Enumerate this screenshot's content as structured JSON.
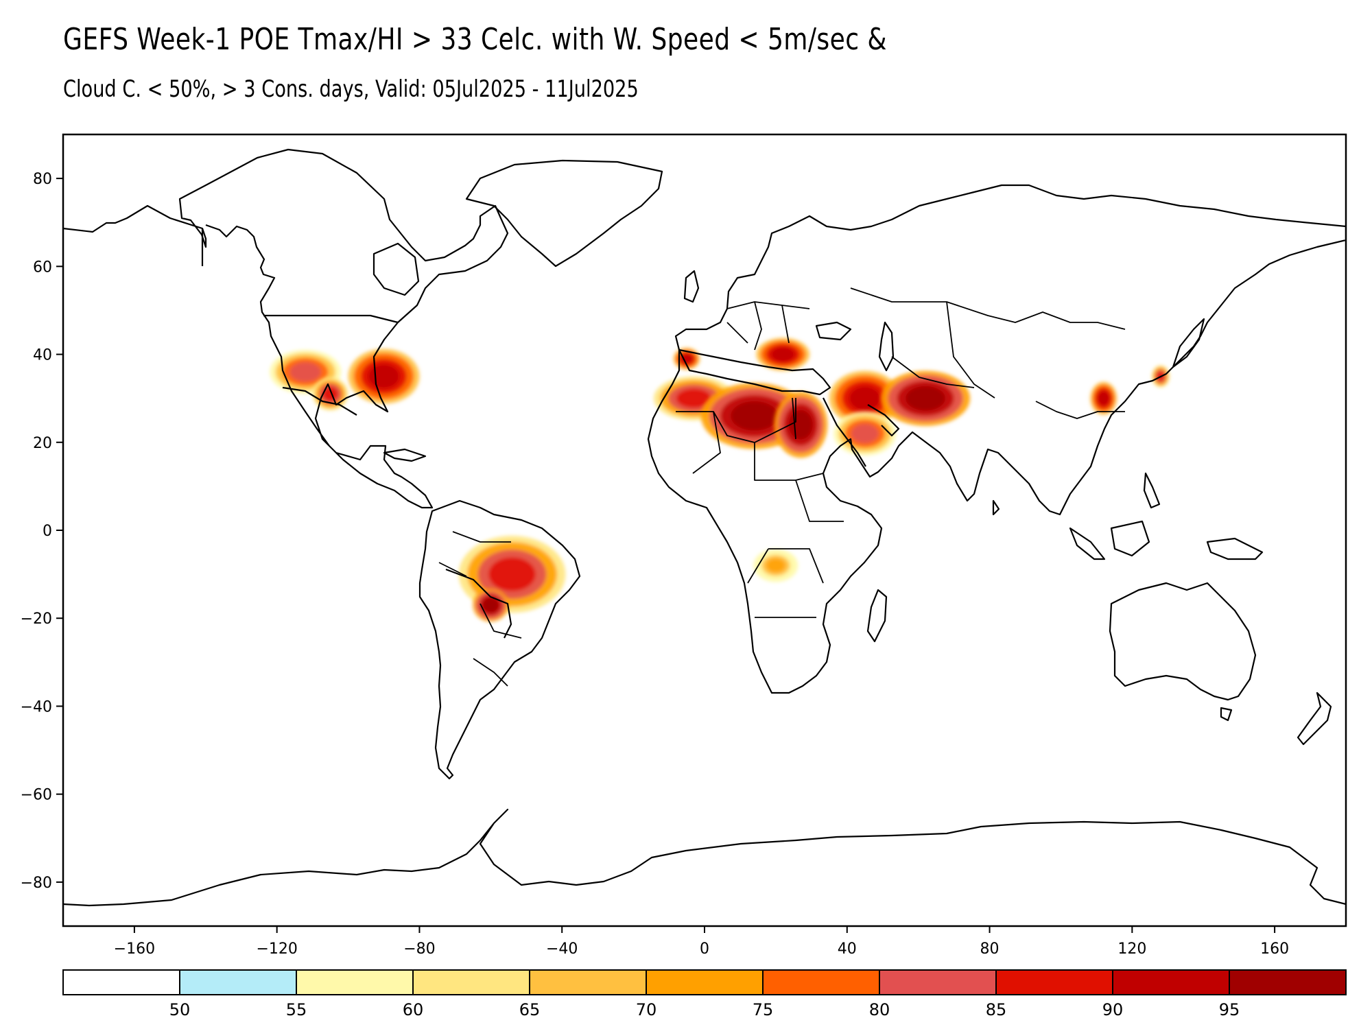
{
  "title": {
    "line1": "GEFS Week-1 POE Tmax/HI > 33 Celc. with W. Speed < 5m/sec &",
    "line2": "Cloud C. < 50%, > 3 Cons. days, Valid: 05Jul2025 - 11Jul2025"
  },
  "axes": {
    "y_ticks": [
      {
        "value": 80,
        "label": "80"
      },
      {
        "value": 60,
        "label": "60"
      },
      {
        "value": 40,
        "label": "40"
      },
      {
        "value": 20,
        "label": "20"
      },
      {
        "value": 0,
        "label": "0"
      },
      {
        "value": -20,
        "label": "−20"
      },
      {
        "value": -40,
        "label": "−40"
      },
      {
        "value": -60,
        "label": "−60"
      },
      {
        "value": -80,
        "label": "−80"
      }
    ],
    "x_ticks": [
      {
        "value": -160,
        "label": "−160"
      },
      {
        "value": -120,
        "label": "−120"
      },
      {
        "value": -80,
        "label": "−80"
      },
      {
        "value": -40,
        "label": "−40"
      },
      {
        "value": 0,
        "label": "0"
      },
      {
        "value": 40,
        "label": "40"
      },
      {
        "value": 80,
        "label": "80"
      },
      {
        "value": 120,
        "label": "120"
      },
      {
        "value": 160,
        "label": "160"
      }
    ],
    "lon_range": [
      -180,
      180
    ],
    "lat_range": [
      -90,
      90
    ]
  },
  "colorbar": {
    "colors": [
      "#ffffff",
      "#b4ecf8",
      "#fff9aa",
      "#ffe680",
      "#ffc040",
      "#ffa000",
      "#ff6000",
      "#e25050",
      "#e01000",
      "#c00000",
      "#a00000"
    ],
    "labels": [
      "50",
      "55",
      "60",
      "65",
      "70",
      "75",
      "80",
      "85",
      "90",
      "95"
    ]
  },
  "map_data": {
    "coastline_color": "#000000",
    "hotspots": [
      {
        "region": "Southwestern US",
        "lon": -112,
        "lat": 36,
        "r_lon": 8,
        "r_lat": 4,
        "level": 80
      },
      {
        "region": "South-central US",
        "lon": -90,
        "lat": 35,
        "r_lon": 8,
        "r_lat": 5,
        "level": 90
      },
      {
        "region": "Texas / Mexico border",
        "lon": -105,
        "lat": 31,
        "r_lon": 4,
        "r_lat": 3,
        "level": 85
      },
      {
        "region": "Central Brazil",
        "lon": -54,
        "lat": -10,
        "r_lon": 12,
        "r_lat": 7,
        "level": 85
      },
      {
        "region": "Bolivia / Paraguay",
        "lon": -60,
        "lat": -17,
        "r_lon": 4,
        "r_lat": 3,
        "level": 95
      },
      {
        "region": "Iberia",
        "lon": -5,
        "lat": 39,
        "r_lon": 3,
        "r_lat": 2,
        "level": 90
      },
      {
        "region": "Northwest Africa",
        "lon": -3,
        "lat": 30,
        "r_lon": 9,
        "r_lat": 4,
        "level": 85
      },
      {
        "region": "Central Sahara",
        "lon": 14,
        "lat": 26,
        "r_lon": 12,
        "r_lat": 6,
        "level": 95
      },
      {
        "region": "Egypt / Sudan",
        "lon": 27,
        "lat": 24,
        "r_lon": 6,
        "r_lat": 6,
        "level": 95
      },
      {
        "region": "Balkans / Greece",
        "lon": 22,
        "lat": 40,
        "r_lon": 6,
        "r_lat": 3,
        "level": 90
      },
      {
        "region": "Middle East",
        "lon": 45,
        "lat": 30,
        "r_lon": 8,
        "r_lat": 5,
        "level": 90
      },
      {
        "region": "Arabian Peninsula",
        "lon": 45,
        "lat": 22,
        "r_lon": 7,
        "r_lat": 4,
        "level": 80
      },
      {
        "region": "Iran / Pakistan",
        "lon": 62,
        "lat": 30,
        "r_lon": 10,
        "r_lat": 5,
        "level": 95
      },
      {
        "region": "Eastern China",
        "lon": 112,
        "lat": 30,
        "r_lon": 3,
        "r_lat": 3,
        "level": 90
      },
      {
        "region": "Korea / Japan",
        "lon": 128,
        "lat": 35,
        "r_lon": 2,
        "r_lat": 2,
        "level": 85
      },
      {
        "region": "Angola / Zambia",
        "lon": 20,
        "lat": -8,
        "r_lon": 5,
        "r_lat": 3,
        "level": 70
      }
    ]
  }
}
